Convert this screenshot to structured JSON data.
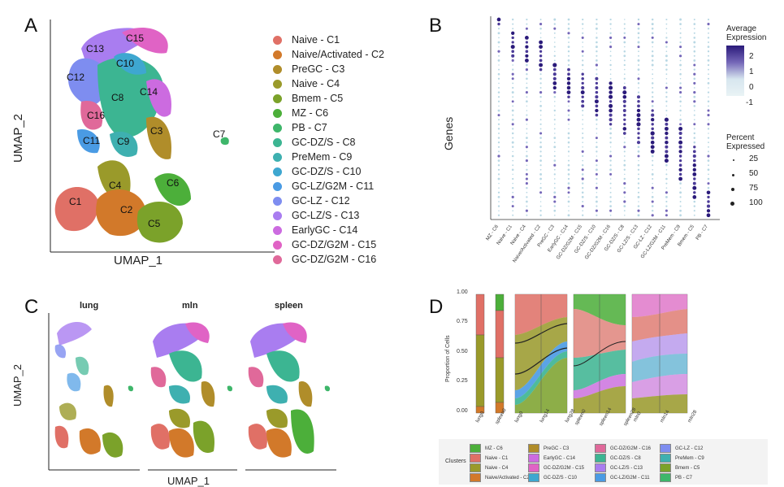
{
  "panels": {
    "a": {
      "letter": "A",
      "xlabel": "UMAP_1",
      "ylabel": "UMAP_2"
    },
    "b": {
      "letter": "B",
      "ylabel": "Genes"
    },
    "c": {
      "letter": "C",
      "xlabel": "UMAP_1",
      "ylabel": "UMAP_2",
      "subplots": [
        "lung",
        "mln",
        "spleen"
      ]
    },
    "d": {
      "letter": "D",
      "ylabel": "Proportion of Cells",
      "legend_title": "Clusters"
    }
  },
  "clusters": [
    {
      "label": "Naive - C1",
      "color": "#E07066",
      "short": "C1"
    },
    {
      "label": "Naive/Activated - C2",
      "color": "#D2792A",
      "short": "C2"
    },
    {
      "label": "PreGC - C3",
      "color": "#B08D2A",
      "short": "C3"
    },
    {
      "label": "Naive - C4",
      "color": "#9A9A2A",
      "short": "C4"
    },
    {
      "label": "Bmem - C5",
      "color": "#7BA22A",
      "short": "C5"
    },
    {
      "label": "MZ - C6",
      "color": "#4CAF3A",
      "short": "C6"
    },
    {
      "label": "PB - C7",
      "color": "#3EB66A",
      "short": "C7"
    },
    {
      "label": "GC-DZ/S - C8",
      "color": "#3CB592",
      "short": "C8"
    },
    {
      "label": "PreMem - C9",
      "color": "#3EB0B0",
      "short": "C9"
    },
    {
      "label": "GC-DZ/S - C10",
      "color": "#3EA7D0",
      "short": "C10"
    },
    {
      "label": "GC-LZ/G2M - C11",
      "color": "#4A9BE4",
      "short": "C11"
    },
    {
      "label": "GC-LZ - C12",
      "color": "#7E8DF0",
      "short": "C12"
    },
    {
      "label": "GC-LZ/S - C13",
      "color": "#A97DF0",
      "short": "C13"
    },
    {
      "label": "EarlyGC - C14",
      "color": "#CC6BE0",
      "short": "C14"
    },
    {
      "label": "GC-DZ/G2M - C15",
      "color": "#E063C5",
      "short": "C15"
    },
    {
      "label": "GC-DZ/G2M - C16",
      "color": "#E0699A",
      "short": "C16"
    }
  ],
  "chart_data": [
    {
      "type": "scatter",
      "panel": "A",
      "title": "",
      "xlabel": "UMAP_1",
      "ylabel": "UMAP_2",
      "cluster_labels": [
        "C1",
        "C2",
        "C3",
        "C4",
        "C5",
        "C6",
        "C7",
        "C8",
        "C9",
        "C10",
        "C11",
        "C12",
        "C13",
        "C14",
        "C15",
        "C16"
      ]
    },
    {
      "type": "heatmap",
      "subtype": "dotplot",
      "panel": "B",
      "ylabel": "Genes",
      "categories": [
        "MZ - C6",
        "Naive - C1",
        "Naive - C4",
        "Naive/Activated - C2",
        "PreGC - C3",
        "EarlyGC - C14",
        "GC-DZ/G2M - C15",
        "GC-DZ/S - C10",
        "GC-DZ/G2M - C16",
        "GC-DZ/S - C8",
        "GC-LZ/S - C13",
        "GC-LZ - C12",
        "GC-LZ/G2M - C11",
        "PreMem - C9",
        "Bmem - C5",
        "PB - C7"
      ],
      "color_legend": {
        "title": "Average Expression",
        "ticks": [
          "2",
          "1",
          "0",
          "-1"
        ],
        "range": [
          -1.5,
          2.5
        ]
      },
      "size_legend": {
        "title": "Percent Expressed",
        "values": [
          25,
          50,
          75,
          100
        ]
      }
    },
    {
      "type": "scatter",
      "panel": "C",
      "facets": [
        "lung",
        "mln",
        "spleen"
      ],
      "xlabel": "UMAP_1",
      "ylabel": "UMAP_2"
    },
    {
      "type": "area",
      "subtype": "alluvial",
      "panel": "D",
      "ylabel": "Proportion of Cells",
      "ylim": [
        0,
        1
      ],
      "yticks": [
        "0.00",
        "0.25",
        "0.50",
        "0.75",
        "1.00"
      ],
      "groups": [
        {
          "x": [
            "lung0"
          ]
        },
        {
          "x": [
            "spleen0"
          ]
        },
        {
          "x": [
            "lung0",
            "lung14",
            "lung28"
          ]
        },
        {
          "x": [
            "spleen0",
            "spleen14",
            "spleen28"
          ]
        },
        {
          "x": [
            "mln0",
            "mln14",
            "mln28"
          ]
        }
      ],
      "x_tick_labels": [
        "lung0",
        "spleen0",
        "lung0",
        "lung14",
        "lung28",
        "spleen0",
        "spleen14",
        "spleen28",
        "mln0",
        "mln14",
        "mln28"
      ],
      "legend_title": "Clusters",
      "legend_entries": [
        "MZ - C6",
        "Naive - C1",
        "Naive - C4",
        "Naive/Activated - C2",
        "PreGC - C3",
        "EarlyGC - C14",
        "GC-DZ/G2M - C15",
        "GC-DZ/S - C10",
        "GC-DZ/G2M - C16",
        "GC-DZ/S - C8",
        "GC-LZ/S - C13",
        "GC-LZ/G2M - C11",
        "GC-LZ - C12",
        "PreMem - C9",
        "Bmem - C5",
        "PB - C7"
      ]
    }
  ],
  "legendD": [
    {
      "label": "MZ - C6",
      "color": "#4CAF3A"
    },
    {
      "label": "PreGC - C3",
      "color": "#B08D2A"
    },
    {
      "label": "GC-DZ/G2M - C16",
      "color": "#E0699A"
    },
    {
      "label": "GC-LZ - C12",
      "color": "#7E8DF0"
    },
    {
      "label": "Naive - C1",
      "color": "#E07066"
    },
    {
      "label": "EarlyGC - C14",
      "color": "#CC6BE0"
    },
    {
      "label": "GC-DZ/S - C8",
      "color": "#3CB592"
    },
    {
      "label": "PreMem - C9",
      "color": "#3EB0B0"
    },
    {
      "label": "Naive - C4",
      "color": "#9A9A2A"
    },
    {
      "label": "GC-DZ/G2M - C15",
      "color": "#E063C5"
    },
    {
      "label": "GC-LZ/S - C13",
      "color": "#A97DF0"
    },
    {
      "label": "Bmem - C5",
      "color": "#7BA22A"
    },
    {
      "label": "Naive/Activated - C2",
      "color": "#D2792A"
    },
    {
      "label": "GC-DZ/S - C10",
      "color": "#3EA7D0"
    },
    {
      "label": "GC-LZ/G2M - C11",
      "color": "#4A9BE4"
    },
    {
      "label": "PB - C7",
      "color": "#3EB66A"
    }
  ]
}
